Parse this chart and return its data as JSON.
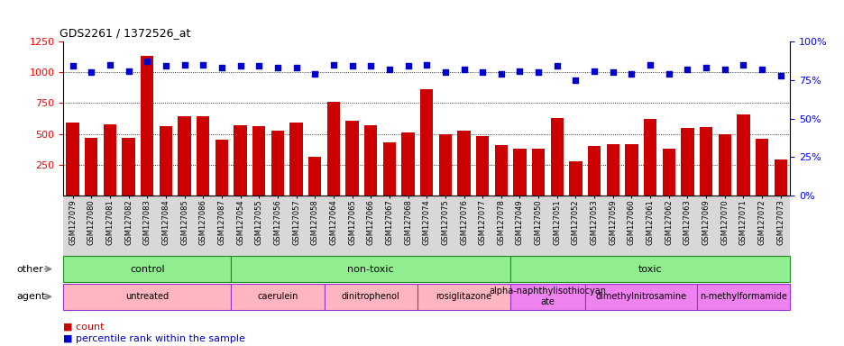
{
  "title": "GDS2261 / 1372526_at",
  "samples": [
    "GSM127079",
    "GSM127080",
    "GSM127081",
    "GSM127082",
    "GSM127083",
    "GSM127084",
    "GSM127085",
    "GSM127086",
    "GSM127087",
    "GSM127054",
    "GSM127055",
    "GSM127056",
    "GSM127057",
    "GSM127058",
    "GSM127064",
    "GSM127065",
    "GSM127066",
    "GSM127067",
    "GSM127068",
    "GSM127074",
    "GSM127075",
    "GSM127076",
    "GSM127077",
    "GSM127078",
    "GSM127049",
    "GSM127050",
    "GSM127051",
    "GSM127052",
    "GSM127053",
    "GSM127059",
    "GSM127060",
    "GSM127061",
    "GSM127062",
    "GSM127063",
    "GSM127069",
    "GSM127070",
    "GSM127071",
    "GSM127072",
    "GSM127073"
  ],
  "counts": [
    590,
    470,
    580,
    470,
    1130,
    560,
    640,
    640,
    450,
    570,
    560,
    530,
    590,
    315,
    760,
    610,
    570,
    430,
    510,
    860,
    500,
    530,
    480,
    410,
    380,
    380,
    630,
    275,
    405,
    415,
    420,
    620,
    380,
    545,
    555,
    500,
    660,
    460,
    295
  ],
  "percentiles": [
    84,
    80,
    85,
    81,
    87,
    84,
    85,
    85,
    83,
    84,
    84,
    83,
    83,
    79,
    85,
    84,
    84,
    82,
    84,
    85,
    80,
    82,
    80,
    79,
    81,
    80,
    84,
    75,
    81,
    80,
    79,
    85,
    79,
    82,
    83,
    82,
    85,
    82,
    78
  ],
  "bar_color": "#cc0000",
  "dot_color": "#0000cc",
  "ylim_left": [
    0,
    1250
  ],
  "yticks_left": [
    250,
    500,
    750,
    1000,
    1250
  ],
  "ylim_right": [
    0,
    100
  ],
  "yticks_right": [
    0,
    25,
    50,
    75,
    100
  ],
  "gridlines": [
    250,
    500,
    750,
    1000
  ],
  "other_row": [
    {
      "label": "control",
      "start": 0,
      "end": 9,
      "color": "#90ee90"
    },
    {
      "label": "non-toxic",
      "start": 9,
      "end": 24,
      "color": "#90ee90"
    },
    {
      "label": "toxic",
      "start": 24,
      "end": 39,
      "color": "#90ee90"
    }
  ],
  "agent_row": [
    {
      "label": "untreated",
      "start": 0,
      "end": 9,
      "color": "#ffb6c1"
    },
    {
      "label": "caerulein",
      "start": 9,
      "end": 14,
      "color": "#ffb6c1"
    },
    {
      "label": "dinitrophenol",
      "start": 14,
      "end": 19,
      "color": "#ffb6c1"
    },
    {
      "label": "rosiglitazone",
      "start": 19,
      "end": 24,
      "color": "#ffb6c1"
    },
    {
      "label": "alpha-naphthylisothiocyan\nate",
      "start": 24,
      "end": 28,
      "color": "#ee82ee"
    },
    {
      "label": "dimethylnitrosamine",
      "start": 28,
      "end": 34,
      "color": "#ee82ee"
    },
    {
      "label": "n-methylformamide",
      "start": 34,
      "end": 39,
      "color": "#ee82ee"
    }
  ]
}
